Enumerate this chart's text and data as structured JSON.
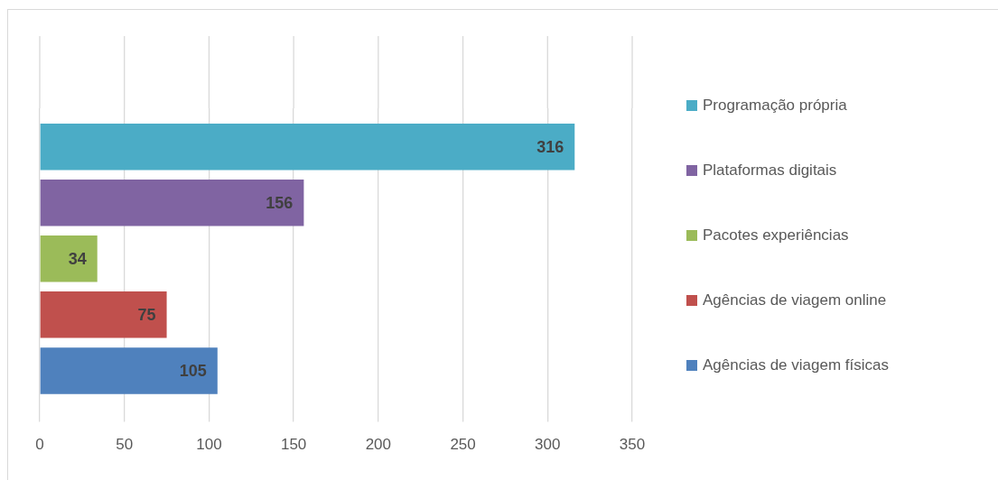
{
  "chart_data": {
    "type": "bar",
    "orientation": "horizontal",
    "categories": [
      null
    ],
    "series": [
      {
        "name": "Programação própria",
        "color": "#4bacc6",
        "values": [
          316
        ]
      },
      {
        "name": "Plataformas digitais",
        "color": "#8064a2",
        "values": [
          156
        ]
      },
      {
        "name": "Pacotes experiências",
        "color": "#9bbb59",
        "values": [
          34
        ]
      },
      {
        "name": "Agências de viagem online",
        "color": "#c0504d",
        "values": [
          75
        ]
      },
      {
        "name": "Agências de viagem físicas",
        "color": "#4f81bd",
        "values": [
          105
        ]
      }
    ],
    "xlim": [
      0,
      350
    ],
    "xticks": [
      0,
      50,
      100,
      150,
      200,
      250,
      300,
      350
    ],
    "grid": "x",
    "legend": "right",
    "tick_labels": "x",
    "data_labels": true
  }
}
